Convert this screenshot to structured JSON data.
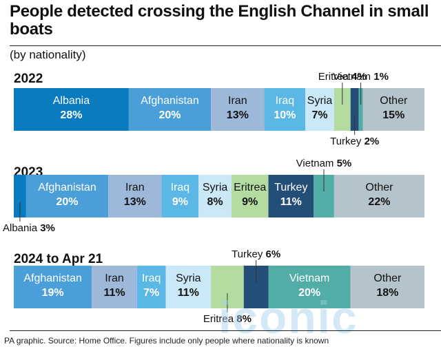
{
  "title": "People detected crossing the English Channel in small boats",
  "subtitle": "(by nationality)",
  "footer": "PA graphic. Source: Home Office. Figures include only people where nationality is known",
  "watermark": "iconic",
  "colors": {
    "Albania": "#0a7bbf",
    "Afghanistan": "#4a9fd8",
    "Iran": "#9db8d9",
    "Iraq": "#5bb7e6",
    "Syria": "#cbe8f7",
    "Eritrea": "#b4dca0",
    "Turkey": "#234e78",
    "Vietnam": "#52ada6",
    "Other": "#b4c3cc"
  },
  "chart_data": [
    {
      "type": "bar",
      "stacked": "100%",
      "year": "2022",
      "segments": [
        {
          "name": "Albania",
          "value": 28,
          "label": "28%"
        },
        {
          "name": "Afghanistan",
          "value": 20,
          "label": "20%"
        },
        {
          "name": "Iran",
          "value": 13,
          "label": "13%"
        },
        {
          "name": "Iraq",
          "value": 10,
          "label": "10%"
        },
        {
          "name": "Syria",
          "value": 7,
          "label": "7%"
        },
        {
          "name": "Eritrea",
          "value": 4,
          "label": "4%"
        },
        {
          "name": "Turkey",
          "value": 2,
          "label": "2%"
        },
        {
          "name": "Vietnam",
          "value": 1,
          "label": "1%"
        },
        {
          "name": "Other",
          "value": 15,
          "label": "15%"
        }
      ]
    },
    {
      "type": "bar",
      "stacked": "100%",
      "year": "2023",
      "segments": [
        {
          "name": "Albania",
          "value": 3,
          "label": "3%"
        },
        {
          "name": "Afghanistan",
          "value": 20,
          "label": "20%"
        },
        {
          "name": "Iran",
          "value": 13,
          "label": "13%"
        },
        {
          "name": "Iraq",
          "value": 9,
          "label": "9%"
        },
        {
          "name": "Syria",
          "value": 8,
          "label": "8%"
        },
        {
          "name": "Eritrea",
          "value": 9,
          "label": "9%"
        },
        {
          "name": "Turkey",
          "value": 11,
          "label": "11%"
        },
        {
          "name": "Vietnam",
          "value": 5,
          "label": "5%"
        },
        {
          "name": "Other",
          "value": 22,
          "label": "22%"
        }
      ]
    },
    {
      "type": "bar",
      "stacked": "100%",
      "year": "2024 to Apr 21",
      "segments": [
        {
          "name": "Afghanistan",
          "value": 19,
          "label": "19%"
        },
        {
          "name": "Iran",
          "value": 11,
          "label": "11%"
        },
        {
          "name": "Iraq",
          "value": 7,
          "label": "7%"
        },
        {
          "name": "Syria",
          "value": 11,
          "label": "11%"
        },
        {
          "name": "Eritrea",
          "value": 8,
          "label": "8%"
        },
        {
          "name": "Turkey",
          "value": 6,
          "label": "6%"
        },
        {
          "name": "Vietnam",
          "value": 20,
          "label": "20%"
        },
        {
          "name": "Other",
          "value": 18,
          "label": "18%"
        }
      ]
    }
  ]
}
